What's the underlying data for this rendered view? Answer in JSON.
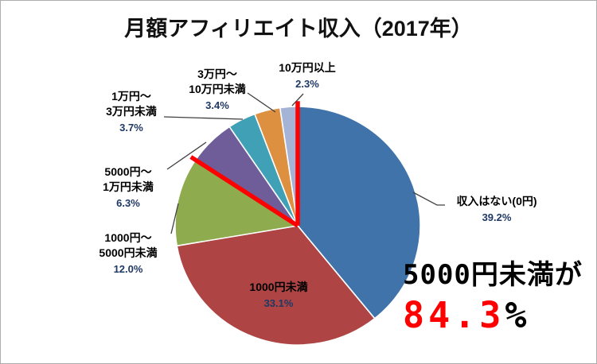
{
  "title": "月額アフィリエイト収入（2017年）",
  "chart_data": {
    "type": "pie",
    "title": "月額アフィリエイト収入（2017年）",
    "direction": "clockwise",
    "start_angle_deg": 0,
    "slices": [
      {
        "label": "収入はない(0円)",
        "label_lines": [
          "収入はない(0円)"
        ],
        "value": 39.2,
        "pct_label": "39.2%",
        "color": "#4173AB",
        "label_position": "outside-right"
      },
      {
        "label": "1000円未満",
        "label_lines": [
          "1000円未満"
        ],
        "value": 33.1,
        "pct_label": "33.1%",
        "color": "#AE4443",
        "label_position": "inside"
      },
      {
        "label": "1000円～5000円未満",
        "label_lines": [
          "1000円～",
          "5000円未満"
        ],
        "value": 12.0,
        "pct_label": "12.0%",
        "color": "#8EAB4E",
        "label_position": "outside-left"
      },
      {
        "label": "5000円～1万円未満",
        "label_lines": [
          "5000円～",
          "1万円未満"
        ],
        "value": 6.3,
        "pct_label": "6.3%",
        "color": "#6F5D99",
        "label_position": "outside-left"
      },
      {
        "label": "1万円～3万円未満",
        "label_lines": [
          "1万円～",
          "3万円未満"
        ],
        "value": 3.7,
        "pct_label": "3.7%",
        "color": "#40A0B6",
        "label_position": "outside-left"
      },
      {
        "label": "3万円～10万円未満",
        "label_lines": [
          "3万円～",
          "10万円未満"
        ],
        "value": 3.4,
        "pct_label": "3.4%",
        "color": "#DE9041",
        "label_position": "outside-top"
      },
      {
        "label": "10万円以上",
        "label_lines": [
          "10万円以上"
        ],
        "value": 2.3,
        "pct_label": "2.3%",
        "color": "#A5B4D6",
        "label_position": "outside-top"
      }
    ],
    "group_highlight": {
      "label": "5000円未満",
      "value_pct": 84.3,
      "boundary_angles_deg": [
        0,
        303.48
      ],
      "line_color": "#FE0000"
    }
  },
  "annotation": {
    "line1": "5000円未満が",
    "value": "84.3",
    "suffix": "%",
    "value_color": "#FF0000",
    "text_color": "#000000"
  },
  "colors": {
    "percent_text": "#1F3864",
    "label_text": "#000000",
    "leader_line": "#404040",
    "background": "#FFFFFF",
    "border": "#ADADAD"
  }
}
